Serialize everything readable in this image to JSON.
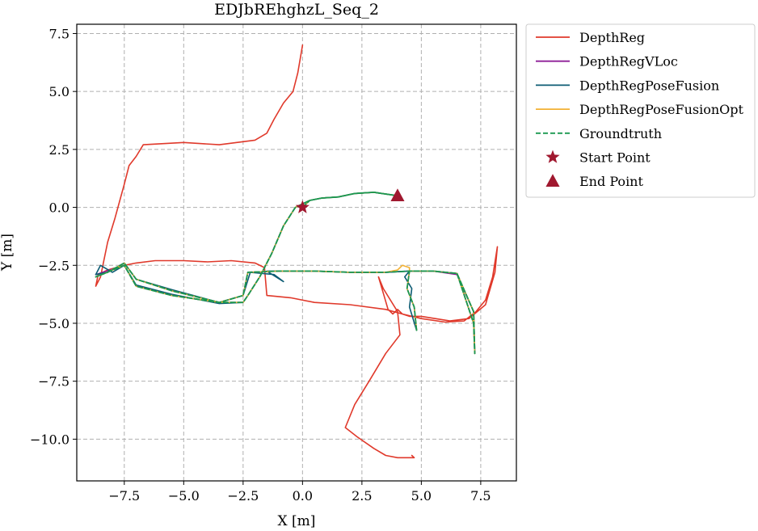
{
  "chart_data": {
    "type": "line",
    "title": "EDJbREhghzL_Seq_2",
    "xlabel": "X [m]",
    "ylabel": "Y [m]",
    "xlim": [
      -9.5,
      9.0
    ],
    "ylim": [
      -11.8,
      7.9
    ],
    "xticks": [
      -7.5,
      -5.0,
      -2.5,
      0.0,
      2.5,
      5.0,
      7.5
    ],
    "yticks": [
      7.5,
      5.0,
      2.5,
      0.0,
      -2.5,
      -5.0,
      -7.5,
      -10.0
    ],
    "xtick_labels": [
      "−7.5",
      "−5.0",
      "−2.5",
      "0.0",
      "2.5",
      "5.0",
      "7.5"
    ],
    "ytick_labels": [
      "7.5",
      "5.0",
      "2.5",
      "0.0",
      "−2.5",
      "−5.0",
      "−7.5",
      "−10.0"
    ],
    "grid": true,
    "legend_position": "outside-right-top",
    "series": [
      {
        "name": "DepthReg",
        "color": "#e0392b",
        "style": "solid",
        "points": [
          [
            0.0,
            7.0
          ],
          [
            -0.2,
            5.8
          ],
          [
            -0.4,
            5.0
          ],
          [
            -0.8,
            4.5
          ],
          [
            -1.2,
            3.8
          ],
          [
            -1.5,
            3.2
          ],
          [
            -2.0,
            2.9
          ],
          [
            -3.5,
            2.7
          ],
          [
            -5.0,
            2.8
          ],
          [
            -6.7,
            2.7
          ],
          [
            -7.0,
            2.2
          ],
          [
            -7.3,
            1.8
          ],
          [
            -7.5,
            1.0
          ],
          [
            -7.9,
            -0.5
          ],
          [
            -8.2,
            -1.5
          ],
          [
            -8.4,
            -2.5
          ],
          [
            -8.5,
            -3.0
          ],
          [
            -8.7,
            -3.4
          ],
          [
            -8.6,
            -2.9
          ],
          [
            -8.2,
            -2.7
          ],
          [
            -7.5,
            -2.5
          ],
          [
            -7.0,
            -2.4
          ],
          [
            -6.2,
            -2.3
          ],
          [
            -5.0,
            -2.3
          ],
          [
            -4.0,
            -2.35
          ],
          [
            -3.0,
            -2.3
          ],
          [
            -2.0,
            -2.4
          ],
          [
            -1.6,
            -2.6
          ],
          [
            -1.5,
            -3.8
          ],
          [
            -0.5,
            -3.9
          ],
          [
            0.5,
            -4.1
          ],
          [
            2.0,
            -4.2
          ],
          [
            3.5,
            -4.4
          ],
          [
            4.2,
            -4.6
          ],
          [
            5.0,
            -4.8
          ],
          [
            6.0,
            -4.95
          ],
          [
            6.8,
            -4.9
          ],
          [
            7.3,
            -4.5
          ],
          [
            7.7,
            -4.0
          ],
          [
            8.0,
            -3.0
          ],
          [
            8.2,
            -1.7
          ],
          [
            8.1,
            -2.8
          ],
          [
            7.7,
            -4.2
          ],
          [
            7.0,
            -4.8
          ],
          [
            6.2,
            -4.9
          ],
          [
            5.0,
            -4.7
          ],
          [
            4.5,
            -4.7
          ],
          [
            4.2,
            -4.6
          ],
          [
            4.0,
            -4.4
          ],
          [
            3.8,
            -4.6
          ],
          [
            3.6,
            -4.4
          ],
          [
            3.4,
            -3.7
          ],
          [
            3.2,
            -3.0
          ],
          [
            3.4,
            -3.5
          ],
          [
            4.0,
            -4.5
          ],
          [
            4.1,
            -5.5
          ],
          [
            3.5,
            -6.3
          ],
          [
            2.8,
            -7.5
          ],
          [
            2.2,
            -8.5
          ],
          [
            1.8,
            -9.5
          ],
          [
            2.3,
            -9.9
          ],
          [
            3.0,
            -10.4
          ],
          [
            3.5,
            -10.7
          ],
          [
            4.0,
            -10.8
          ],
          [
            4.7,
            -10.8
          ],
          [
            4.6,
            -10.7
          ]
        ]
      },
      {
        "name": "DepthRegVLoc",
        "color": "#8e1f97",
        "style": "solid",
        "points": [
          [
            0.0,
            0.0
          ],
          [
            0.3,
            0.3
          ],
          [
            0.8,
            0.4
          ],
          [
            1.5,
            0.45
          ],
          [
            2.2,
            0.6
          ],
          [
            3.0,
            0.65
          ],
          [
            4.0,
            0.5
          ],
          [
            3.0,
            0.65
          ],
          [
            2.2,
            0.6
          ],
          [
            1.5,
            0.45
          ],
          [
            0.8,
            0.4
          ],
          [
            0.3,
            0.3
          ],
          [
            -0.3,
            0.0
          ],
          [
            -0.8,
            -0.8
          ],
          [
            -1.3,
            -2.0
          ],
          [
            -1.8,
            -3.0
          ],
          [
            -2.3,
            -3.8
          ],
          [
            -2.5,
            -4.1
          ],
          [
            -3.5,
            -4.1
          ],
          [
            -5.5,
            -3.8
          ],
          [
            -7.0,
            -3.4
          ],
          [
            -7.5,
            -2.5
          ],
          [
            -8.7,
            -2.9
          ],
          [
            -8.2,
            -2.8
          ],
          [
            -7.5,
            -2.4
          ],
          [
            -7.0,
            -3.1
          ],
          [
            -5.5,
            -3.6
          ],
          [
            -3.5,
            -4.1
          ],
          [
            -2.5,
            -3.8
          ],
          [
            -2.3,
            -2.8
          ],
          [
            -1.0,
            -2.75
          ],
          [
            0.5,
            -2.75
          ],
          [
            2.0,
            -2.8
          ],
          [
            3.5,
            -2.8
          ],
          [
            4.5,
            -2.75
          ],
          [
            5.5,
            -2.75
          ],
          [
            6.5,
            -2.9
          ],
          [
            7.2,
            -4.5
          ],
          [
            7.25,
            -6.3
          ],
          [
            7.2,
            -5.0
          ],
          [
            6.5,
            -2.85
          ],
          [
            5.5,
            -2.75
          ],
          [
            4.5,
            -2.75
          ],
          [
            4.4,
            -3.5
          ],
          [
            4.7,
            -4.3
          ],
          [
            4.8,
            -5.3
          ]
        ]
      },
      {
        "name": "DepthRegPoseFusion",
        "color": "#0d5c74",
        "style": "solid",
        "points": [
          [
            0.0,
            0.0
          ],
          [
            0.3,
            0.3
          ],
          [
            0.8,
            0.4
          ],
          [
            1.5,
            0.45
          ],
          [
            2.2,
            0.6
          ],
          [
            3.0,
            0.65
          ],
          [
            4.0,
            0.5
          ],
          [
            3.0,
            0.65
          ],
          [
            2.2,
            0.6
          ],
          [
            1.5,
            0.45
          ],
          [
            0.8,
            0.4
          ],
          [
            0.3,
            0.3
          ],
          [
            -0.3,
            0.0
          ],
          [
            -0.8,
            -0.8
          ],
          [
            -1.3,
            -2.0
          ],
          [
            -1.8,
            -3.0
          ],
          [
            -2.3,
            -3.8
          ],
          [
            -2.5,
            -4.1
          ],
          [
            -3.5,
            -4.15
          ],
          [
            -5.5,
            -3.75
          ],
          [
            -7.0,
            -3.35
          ],
          [
            -7.5,
            -2.5
          ],
          [
            -8.0,
            -2.8
          ],
          [
            -8.5,
            -2.5
          ],
          [
            -8.7,
            -2.9
          ],
          [
            -8.2,
            -2.8
          ],
          [
            -7.5,
            -2.4
          ],
          [
            -7.0,
            -3.1
          ],
          [
            -5.5,
            -3.55
          ],
          [
            -3.5,
            -4.1
          ],
          [
            -2.5,
            -3.8
          ],
          [
            -2.2,
            -2.8
          ],
          [
            -1.2,
            -2.9
          ],
          [
            -0.8,
            -3.2
          ],
          [
            -1.5,
            -2.75
          ],
          [
            0.5,
            -2.75
          ],
          [
            2.0,
            -2.8
          ],
          [
            3.5,
            -2.8
          ],
          [
            4.5,
            -2.75
          ],
          [
            5.5,
            -2.75
          ],
          [
            6.5,
            -2.85
          ],
          [
            7.2,
            -4.5
          ],
          [
            7.25,
            -6.3
          ],
          [
            7.2,
            -5.0
          ],
          [
            6.5,
            -2.85
          ],
          [
            5.5,
            -2.75
          ],
          [
            4.5,
            -2.75
          ],
          [
            4.3,
            -3.0
          ],
          [
            4.6,
            -3.5
          ],
          [
            4.5,
            -4.3
          ],
          [
            4.8,
            -5.3
          ]
        ]
      },
      {
        "name": "DepthRegPoseFusionOpt",
        "color": "#f2b134",
        "style": "solid",
        "points": [
          [
            0.0,
            0.0
          ],
          [
            0.3,
            0.3
          ],
          [
            0.8,
            0.4
          ],
          [
            1.5,
            0.45
          ],
          [
            2.2,
            0.6
          ],
          [
            3.0,
            0.65
          ],
          [
            4.0,
            0.5
          ],
          [
            3.0,
            0.65
          ],
          [
            2.2,
            0.6
          ],
          [
            1.5,
            0.45
          ],
          [
            0.8,
            0.4
          ],
          [
            0.3,
            0.3
          ],
          [
            -0.3,
            0.0
          ],
          [
            -0.8,
            -0.8
          ],
          [
            -1.3,
            -2.0
          ],
          [
            -1.8,
            -3.0
          ],
          [
            -2.3,
            -3.8
          ],
          [
            -2.5,
            -4.1
          ],
          [
            -3.5,
            -4.1
          ],
          [
            -5.5,
            -3.8
          ],
          [
            -7.0,
            -3.4
          ],
          [
            -7.5,
            -2.5
          ],
          [
            -8.7,
            -3.0
          ],
          [
            -8.2,
            -2.8
          ],
          [
            -7.5,
            -2.4
          ],
          [
            -7.0,
            -3.1
          ],
          [
            -5.5,
            -3.6
          ],
          [
            -3.5,
            -4.1
          ],
          [
            -2.5,
            -3.8
          ],
          [
            -2.3,
            -2.8
          ],
          [
            -1.0,
            -2.75
          ],
          [
            0.5,
            -2.75
          ],
          [
            2.0,
            -2.8
          ],
          [
            3.5,
            -2.8
          ],
          [
            4.0,
            -2.7
          ],
          [
            4.2,
            -2.5
          ],
          [
            4.5,
            -2.6
          ],
          [
            4.5,
            -2.75
          ],
          [
            5.5,
            -2.75
          ],
          [
            6.5,
            -2.85
          ],
          [
            7.2,
            -4.5
          ],
          [
            7.25,
            -6.3
          ],
          [
            7.2,
            -5.0
          ],
          [
            6.5,
            -2.85
          ],
          [
            5.5,
            -2.75
          ],
          [
            4.5,
            -2.75
          ],
          [
            4.4,
            -3.5
          ],
          [
            4.7,
            -4.3
          ],
          [
            4.8,
            -5.3
          ]
        ]
      },
      {
        "name": "Groundtruth",
        "color": "#1a9850",
        "style": "dashed",
        "points": [
          [
            0.0,
            0.0
          ],
          [
            0.3,
            0.3
          ],
          [
            0.8,
            0.4
          ],
          [
            1.5,
            0.45
          ],
          [
            2.2,
            0.6
          ],
          [
            3.0,
            0.65
          ],
          [
            4.0,
            0.5
          ],
          [
            3.0,
            0.65
          ],
          [
            2.2,
            0.6
          ],
          [
            1.5,
            0.45
          ],
          [
            0.8,
            0.4
          ],
          [
            0.3,
            0.3
          ],
          [
            -0.3,
            0.0
          ],
          [
            -0.8,
            -0.8
          ],
          [
            -1.3,
            -2.0
          ],
          [
            -1.8,
            -3.0
          ],
          [
            -2.3,
            -3.8
          ],
          [
            -2.5,
            -4.1
          ],
          [
            -3.5,
            -4.1
          ],
          [
            -5.5,
            -3.8
          ],
          [
            -7.0,
            -3.4
          ],
          [
            -7.5,
            -2.5
          ],
          [
            -8.7,
            -3.0
          ],
          [
            -8.2,
            -2.8
          ],
          [
            -7.5,
            -2.4
          ],
          [
            -7.0,
            -3.1
          ],
          [
            -5.5,
            -3.6
          ],
          [
            -3.5,
            -4.1
          ],
          [
            -2.5,
            -3.8
          ],
          [
            -2.3,
            -2.8
          ],
          [
            -1.0,
            -2.75
          ],
          [
            0.5,
            -2.75
          ],
          [
            2.0,
            -2.8
          ],
          [
            3.5,
            -2.8
          ],
          [
            4.5,
            -2.75
          ],
          [
            5.5,
            -2.75
          ],
          [
            6.5,
            -2.85
          ],
          [
            7.2,
            -4.5
          ],
          [
            7.25,
            -6.3
          ],
          [
            7.2,
            -5.0
          ],
          [
            6.5,
            -2.85
          ],
          [
            5.5,
            -2.75
          ],
          [
            4.5,
            -2.75
          ],
          [
            4.4,
            -3.5
          ],
          [
            4.7,
            -4.3
          ],
          [
            4.8,
            -5.3
          ]
        ]
      }
    ],
    "markers": [
      {
        "name": "Start Point",
        "shape": "star",
        "color": "#a0182f",
        "x": 0.0,
        "y": 0.0
      },
      {
        "name": "End Point",
        "shape": "triangle",
        "color": "#a0182f",
        "x": 4.0,
        "y": 0.5
      }
    ]
  }
}
